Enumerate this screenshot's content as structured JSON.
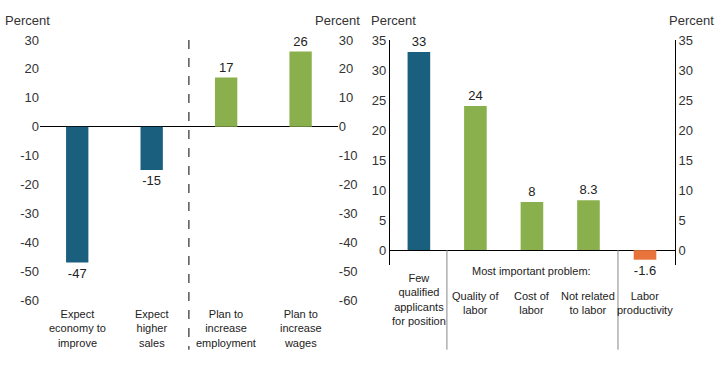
{
  "chart_data": [
    {
      "type": "bar",
      "categories": [
        "Expect economy to improve",
        "Expect higher sales",
        "Plan to increase employment",
        "Plan to increase wages"
      ],
      "values": [
        -47,
        -15,
        17,
        26
      ],
      "colors": [
        "#1b5f7e",
        "#1b5f7e",
        "#8ab04d",
        "#8ab04d"
      ],
      "ylabel": "Percent",
      "y2label": "Percent",
      "ylim": [
        -60,
        30
      ],
      "yticks": [
        -60,
        -50,
        -40,
        -30,
        -20,
        -10,
        0,
        10,
        20,
        30
      ],
      "y2lim": [
        -60,
        30
      ],
      "y2ticks": [
        -60,
        -50,
        -40,
        -30,
        -20,
        -10,
        0,
        10,
        20,
        30
      ],
      "grid": false,
      "data_labels": true
    },
    {
      "type": "bar",
      "categories": [
        "Few qualified applicants for position",
        "Quality of labor",
        "Cost of labor",
        "Not related to labor",
        "Labor productivity"
      ],
      "values": [
        33,
        24,
        8,
        8.3,
        -1.6
      ],
      "colors": [
        "#1b5f7e",
        "#8ab04d",
        "#8ab04d",
        "#8ab04d",
        "#e8743b"
      ],
      "ylabel": "Percent",
      "y2label": "Percent",
      "ylim": [
        -2.5,
        35
      ],
      "yticks": [
        0,
        5,
        10,
        15,
        20,
        25,
        30,
        35
      ],
      "y2lim": [
        -2.5,
        35
      ],
      "y2ticks": [
        0,
        5,
        10,
        15,
        20,
        25,
        30,
        35
      ],
      "annotations": [
        {
          "text": "Most important problem:",
          "categories": [
            "Quality of labor",
            "Cost of labor",
            "Not related to labor"
          ]
        }
      ],
      "grid": false,
      "data_labels": true
    }
  ]
}
